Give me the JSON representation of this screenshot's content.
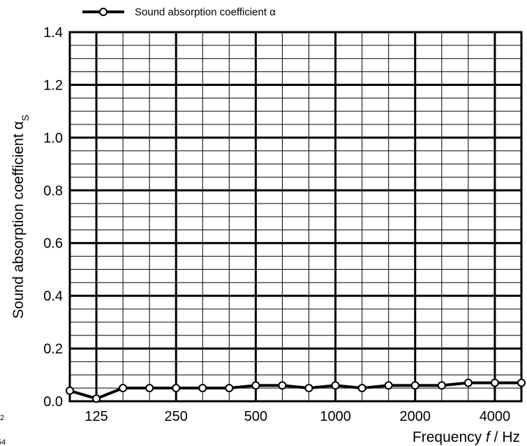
{
  "chart_data": {
    "type": "line",
    "title": "",
    "xlabel": "Frequency",
    "xlabel_var": "f",
    "xlabel_unit": "/ Hz",
    "ylabel": "Sound absorption coefficient α",
    "ylabel_sub": "S",
    "x_scale": "log",
    "categories": [
      "100",
      "125",
      "160",
      "200",
      "250",
      "315",
      "400",
      "500",
      "630",
      "800",
      "1000",
      "1250",
      "1600",
      "2000",
      "2500",
      "3150",
      "4000",
      "5000"
    ],
    "x_tick_labels": [
      "125",
      "250",
      "500",
      "1000",
      "2000",
      "4000"
    ],
    "ylim": [
      0,
      1.4
    ],
    "y_tick_labels": [
      "0.0",
      "0.2",
      "0.4",
      "0.6",
      "0.8",
      "1.0",
      "1.2",
      "1.4"
    ],
    "grid": true,
    "legend_position": "top",
    "series": [
      {
        "name": "Sound absorption coefficient α",
        "color": "#000000",
        "marker": "open-circle",
        "values": [
          0.04,
          0.01,
          0.05,
          0.05,
          0.05,
          0.05,
          0.05,
          0.06,
          0.06,
          0.05,
          0.06,
          0.05,
          0.06,
          0.06,
          0.06,
          0.07,
          0.07,
          0.07
        ]
      }
    ]
  },
  "edge_fragments": {
    "left_superscript": "2",
    "left_bottom": "54"
  }
}
